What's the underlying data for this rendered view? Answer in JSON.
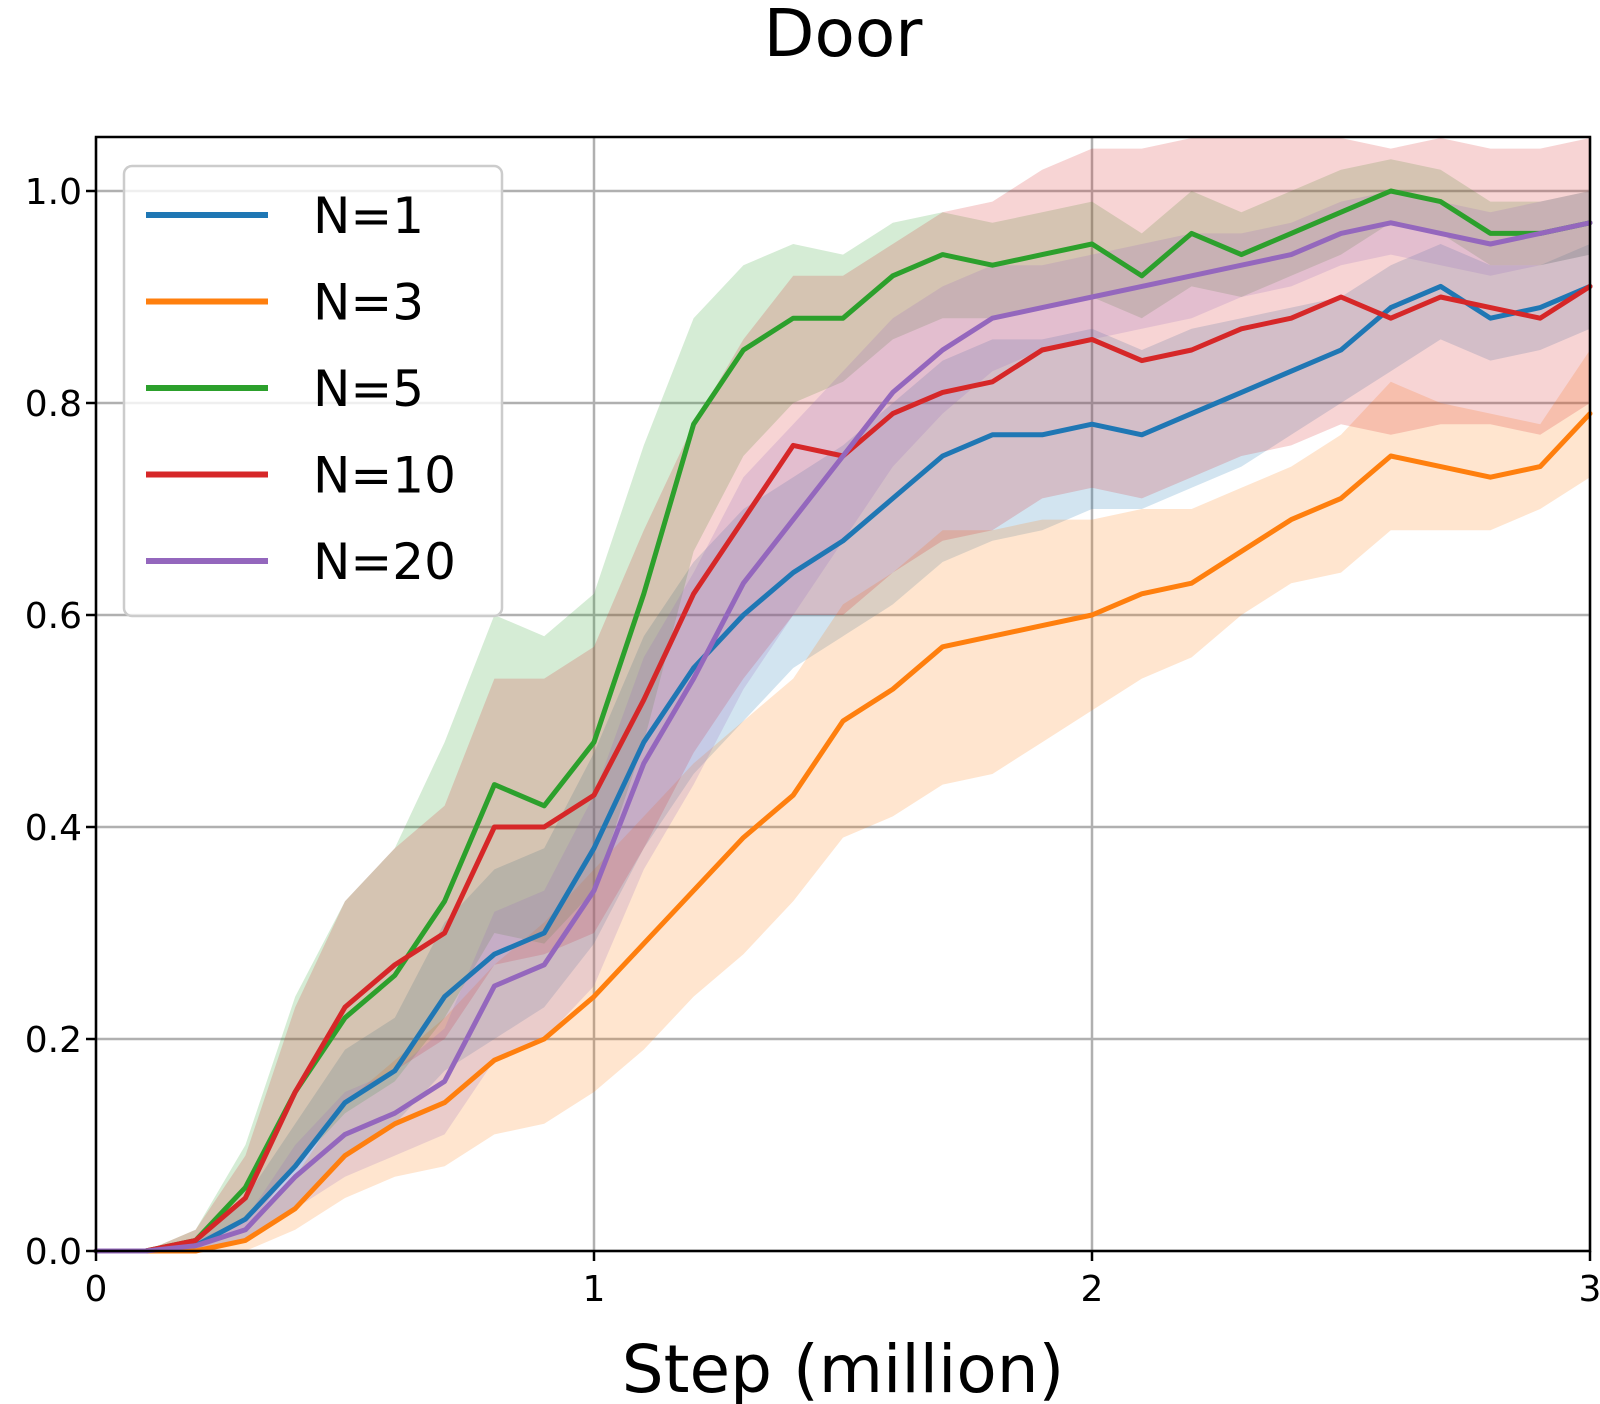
{
  "chart_data": {
    "type": "line",
    "title": "Door",
    "xlabel": "Step (million)",
    "ylabel": "",
    "xlim": [
      0,
      3
    ],
    "ylim": [
      0,
      1.05
    ],
    "xticks": [
      0,
      1,
      2,
      3
    ],
    "xtick_labels": [
      "0",
      "1",
      "2",
      "3"
    ],
    "yticks": [
      0,
      0.2,
      0.4,
      0.6,
      0.8,
      1.0
    ],
    "ytick_labels": [
      "0.0",
      "0.2",
      "0.4",
      "0.6",
      "0.8",
      "1.0"
    ],
    "grid": true,
    "legend_position": "top-left",
    "x": [
      0,
      0.1,
      0.2,
      0.3,
      0.4,
      0.5,
      0.6,
      0.7,
      0.8,
      0.9,
      1.0,
      1.1,
      1.2,
      1.3,
      1.4,
      1.5,
      1.6,
      1.7,
      1.8,
      1.9,
      2.0,
      2.1,
      2.2,
      2.3,
      2.4,
      2.5,
      2.6,
      2.7,
      2.8,
      2.9,
      3.0
    ],
    "series": [
      {
        "name": "N=1",
        "color": "#1f77b4",
        "values": [
          0.0,
          0.0,
          0.005,
          0.03,
          0.08,
          0.14,
          0.17,
          0.24,
          0.28,
          0.3,
          0.38,
          0.48,
          0.55,
          0.6,
          0.64,
          0.67,
          0.71,
          0.75,
          0.77,
          0.77,
          0.78,
          0.77,
          0.79,
          0.81,
          0.83,
          0.85,
          0.89,
          0.91,
          0.88,
          0.89,
          0.91
        ],
        "lower": [
          0.0,
          0.0,
          0.0,
          0.01,
          0.04,
          0.09,
          0.12,
          0.17,
          0.2,
          0.23,
          0.29,
          0.38,
          0.45,
          0.5,
          0.55,
          0.58,
          0.61,
          0.65,
          0.67,
          0.68,
          0.7,
          0.7,
          0.72,
          0.74,
          0.77,
          0.8,
          0.83,
          0.86,
          0.84,
          0.85,
          0.87
        ],
        "upper": [
          0.0,
          0.0,
          0.01,
          0.05,
          0.12,
          0.19,
          0.22,
          0.31,
          0.36,
          0.38,
          0.47,
          0.58,
          0.65,
          0.7,
          0.73,
          0.76,
          0.8,
          0.84,
          0.86,
          0.86,
          0.87,
          0.85,
          0.87,
          0.88,
          0.89,
          0.9,
          0.93,
          0.95,
          0.93,
          0.93,
          0.95
        ]
      },
      {
        "name": "N=3",
        "color": "#ff7f0e",
        "values": [
          0.0,
          0.0,
          0.0,
          0.01,
          0.04,
          0.09,
          0.12,
          0.14,
          0.18,
          0.2,
          0.24,
          0.29,
          0.34,
          0.39,
          0.43,
          0.5,
          0.53,
          0.57,
          0.58,
          0.59,
          0.6,
          0.62,
          0.63,
          0.66,
          0.69,
          0.71,
          0.75,
          0.74,
          0.73,
          0.74,
          0.79
        ],
        "lower": [
          0.0,
          0.0,
          0.0,
          0.0,
          0.02,
          0.05,
          0.07,
          0.08,
          0.11,
          0.12,
          0.15,
          0.19,
          0.24,
          0.28,
          0.33,
          0.39,
          0.41,
          0.44,
          0.45,
          0.48,
          0.51,
          0.54,
          0.56,
          0.6,
          0.63,
          0.64,
          0.68,
          0.68,
          0.68,
          0.7,
          0.73
        ],
        "upper": [
          0.0,
          0.0,
          0.0,
          0.02,
          0.07,
          0.14,
          0.18,
          0.22,
          0.27,
          0.31,
          0.36,
          0.41,
          0.46,
          0.5,
          0.54,
          0.61,
          0.64,
          0.68,
          0.68,
          0.69,
          0.69,
          0.7,
          0.7,
          0.72,
          0.74,
          0.77,
          0.82,
          0.8,
          0.79,
          0.78,
          0.85
        ]
      },
      {
        "name": "N=5",
        "color": "#2ca02c",
        "values": [
          0.0,
          0.0,
          0.01,
          0.06,
          0.15,
          0.22,
          0.26,
          0.33,
          0.44,
          0.42,
          0.48,
          0.62,
          0.78,
          0.85,
          0.88,
          0.88,
          0.92,
          0.94,
          0.93,
          0.94,
          0.95,
          0.92,
          0.96,
          0.94,
          0.96,
          0.98,
          1.0,
          0.99,
          0.96,
          0.96,
          0.97
        ],
        "lower": [
          0.0,
          0.0,
          0.0,
          0.03,
          0.08,
          0.13,
          0.16,
          0.22,
          0.3,
          0.29,
          0.34,
          0.48,
          0.66,
          0.75,
          0.8,
          0.82,
          0.86,
          0.88,
          0.88,
          0.89,
          0.9,
          0.88,
          0.91,
          0.9,
          0.92,
          0.94,
          0.97,
          0.96,
          0.93,
          0.93,
          0.94
        ],
        "upper": [
          0.0,
          0.0,
          0.02,
          0.1,
          0.24,
          0.33,
          0.38,
          0.48,
          0.6,
          0.58,
          0.62,
          0.76,
          0.88,
          0.93,
          0.95,
          0.94,
          0.97,
          0.98,
          0.97,
          0.98,
          0.99,
          0.96,
          1.0,
          0.98,
          1.0,
          1.02,
          1.03,
          1.02,
          0.99,
          0.99,
          1.0
        ]
      },
      {
        "name": "N=10",
        "color": "#d62728",
        "values": [
          0.0,
          0.0,
          0.01,
          0.05,
          0.15,
          0.23,
          0.27,
          0.3,
          0.4,
          0.4,
          0.43,
          0.52,
          0.62,
          0.69,
          0.76,
          0.75,
          0.79,
          0.81,
          0.82,
          0.85,
          0.86,
          0.84,
          0.85,
          0.87,
          0.88,
          0.9,
          0.88,
          0.9,
          0.89,
          0.88,
          0.91
        ],
        "lower": [
          0.0,
          0.0,
          0.0,
          0.02,
          0.08,
          0.14,
          0.17,
          0.2,
          0.27,
          0.28,
          0.3,
          0.38,
          0.47,
          0.54,
          0.6,
          0.6,
          0.64,
          0.67,
          0.68,
          0.71,
          0.72,
          0.71,
          0.73,
          0.75,
          0.76,
          0.78,
          0.77,
          0.78,
          0.78,
          0.77,
          0.8
        ],
        "upper": [
          0.0,
          0.0,
          0.02,
          0.09,
          0.23,
          0.33,
          0.38,
          0.42,
          0.54,
          0.54,
          0.57,
          0.68,
          0.78,
          0.86,
          0.92,
          0.92,
          0.95,
          0.98,
          0.99,
          1.02,
          1.04,
          1.04,
          1.05,
          1.05,
          1.05,
          1.05,
          1.04,
          1.05,
          1.04,
          1.04,
          1.05
        ]
      },
      {
        "name": "N=20",
        "color": "#9467bd",
        "values": [
          0.0,
          0.0,
          0.005,
          0.02,
          0.07,
          0.11,
          0.13,
          0.16,
          0.25,
          0.27,
          0.34,
          0.46,
          0.54,
          0.63,
          0.69,
          0.75,
          0.81,
          0.85,
          0.88,
          0.89,
          0.9,
          0.91,
          0.92,
          0.93,
          0.94,
          0.96,
          0.97,
          0.96,
          0.95,
          0.96,
          0.97
        ],
        "lower": [
          0.0,
          0.0,
          0.0,
          0.01,
          0.04,
          0.07,
          0.09,
          0.11,
          0.18,
          0.2,
          0.25,
          0.36,
          0.44,
          0.53,
          0.6,
          0.67,
          0.74,
          0.79,
          0.83,
          0.85,
          0.86,
          0.87,
          0.88,
          0.9,
          0.91,
          0.93,
          0.94,
          0.93,
          0.92,
          0.93,
          0.94
        ],
        "upper": [
          0.0,
          0.0,
          0.01,
          0.03,
          0.1,
          0.15,
          0.17,
          0.21,
          0.32,
          0.34,
          0.43,
          0.56,
          0.64,
          0.73,
          0.78,
          0.83,
          0.88,
          0.91,
          0.93,
          0.93,
          0.94,
          0.95,
          0.96,
          0.96,
          0.97,
          0.99,
          1.0,
          0.99,
          0.98,
          0.99,
          1.0
        ]
      }
    ]
  }
}
